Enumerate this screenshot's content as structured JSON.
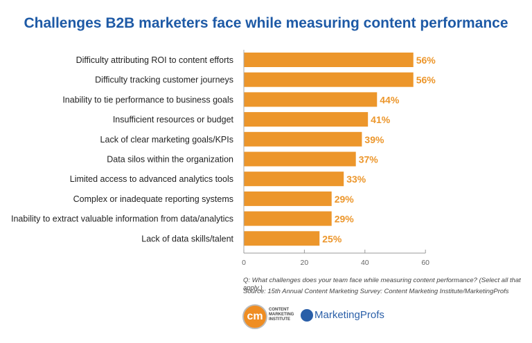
{
  "chart_data": {
    "type": "bar",
    "orientation": "horizontal",
    "title": "Challenges B2B marketers face while measuring content performance",
    "categories": [
      "Difficulty attributing ROI to content efforts",
      "Difficulty tracking customer journeys",
      "Inability to tie performance to business goals",
      "Insufficient resources or budget",
      "Lack of clear marketing goals/KPIs",
      "Data silos within the organization",
      "Limited access to advanced analytics tools",
      "Complex or inadequate reporting systems",
      "Inability to extract valuable information from data/analytics",
      "Lack of data skills/talent"
    ],
    "values": [
      56,
      56,
      44,
      41,
      39,
      37,
      33,
      29,
      29,
      25
    ],
    "data_labels": [
      "56%",
      "56%",
      "44%",
      "41%",
      "39%",
      "37%",
      "33%",
      "29%",
      "29%",
      "25%"
    ],
    "xlim": [
      0,
      60
    ],
    "xticks": [
      "0",
      "20",
      "40",
      "60"
    ],
    "grid": false,
    "bar_color": "#ec962b",
    "label_color": "#ec962b"
  },
  "footnote": {
    "question": "Q: What challenges does your team face while measuring content performance? (Select all that apply.)",
    "source": "Source: 15th Annual Content Marketing Survey: Content Marketing Institute/MarketingProfs"
  },
  "logos": {
    "cmi_mark": "cm",
    "cmi_text": [
      "CONTENT",
      "MARKETING",
      "INSTITUTE"
    ],
    "mprofs": "MarketingProfs"
  }
}
